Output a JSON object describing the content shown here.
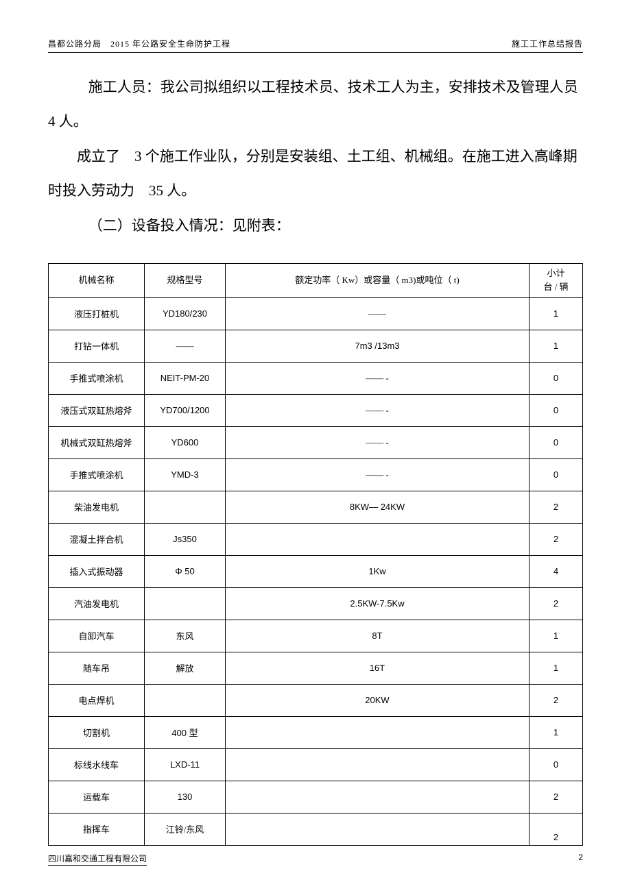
{
  "header": {
    "left": "昌都公路分局　2015 年公路安全生命防护工程",
    "right": "施工工作总结报告"
  },
  "body": {
    "p1": "施工人员：我公司拟组织以工程技术员、技术工人为主，安排技术及管理人员　4 人。",
    "p2": "成立了　3 个施工作业队，分别是安装组、土工组、机械组。在施工进入高峰期时投入劳动力　35 人。",
    "p3": "（二）设备投入情况：见附表："
  },
  "table": {
    "headers": {
      "name": "机械名称",
      "spec": "规格型号",
      "power": "额定功率（ Kw）或容量（ m3)或吨位（ t)",
      "count": "小计\n台 / 辆"
    },
    "rows": [
      {
        "name": "液压打桩机",
        "spec": "YD180/230",
        "power": "——",
        "count": "1"
      },
      {
        "name": "打钻一体机",
        "spec": "——",
        "power": "7m3 /13m3",
        "count": "1"
      },
      {
        "name": "手推式喷涂机",
        "spec": "NEIT-PM-20",
        "power": "—— -",
        "count": "0"
      },
      {
        "name": "液压式双缸热熔斧",
        "spec": "YD700/1200",
        "power": "—— -",
        "count": "0"
      },
      {
        "name": "机械式双缸热熔斧",
        "spec": "YD600",
        "power": "—— -",
        "count": "0"
      },
      {
        "name": "手推式喷涂机",
        "spec": "YMD-3",
        "power": "—— -",
        "count": "0"
      },
      {
        "name": "柴油发电机",
        "spec": "",
        "power": "8KW— 24KW",
        "count": "2"
      },
      {
        "name": "混凝土拌合机",
        "spec": "Js350",
        "power": "",
        "count": "2"
      },
      {
        "name": "插入式振动器",
        "spec": "Φ 50",
        "power": "1Kw",
        "count": "4"
      },
      {
        "name": "汽油发电机",
        "spec": "",
        "power": "2.5KW-7.5Kw",
        "count": "2"
      },
      {
        "name": "自卸汽车",
        "spec": "东风",
        "power": "8T",
        "count": "1"
      },
      {
        "name": "随车吊",
        "spec": "解放",
        "power": "16T",
        "count": "1"
      },
      {
        "name": "电点焊机",
        "spec": "",
        "power": "20KW",
        "count": "2"
      },
      {
        "name": "切割机",
        "spec": "400 型",
        "power": "",
        "count": "1"
      },
      {
        "name": "标线水线车",
        "spec": "LXD-11",
        "power": "",
        "count": "0"
      },
      {
        "name": "运载车",
        "spec": "130",
        "power": "",
        "count": "2"
      },
      {
        "name": "指挥车",
        "spec": "江铃/东风",
        "power": "",
        "count": "2"
      }
    ]
  },
  "footer": {
    "left": "四川嘉和交通工程有限公司",
    "page": "2"
  }
}
